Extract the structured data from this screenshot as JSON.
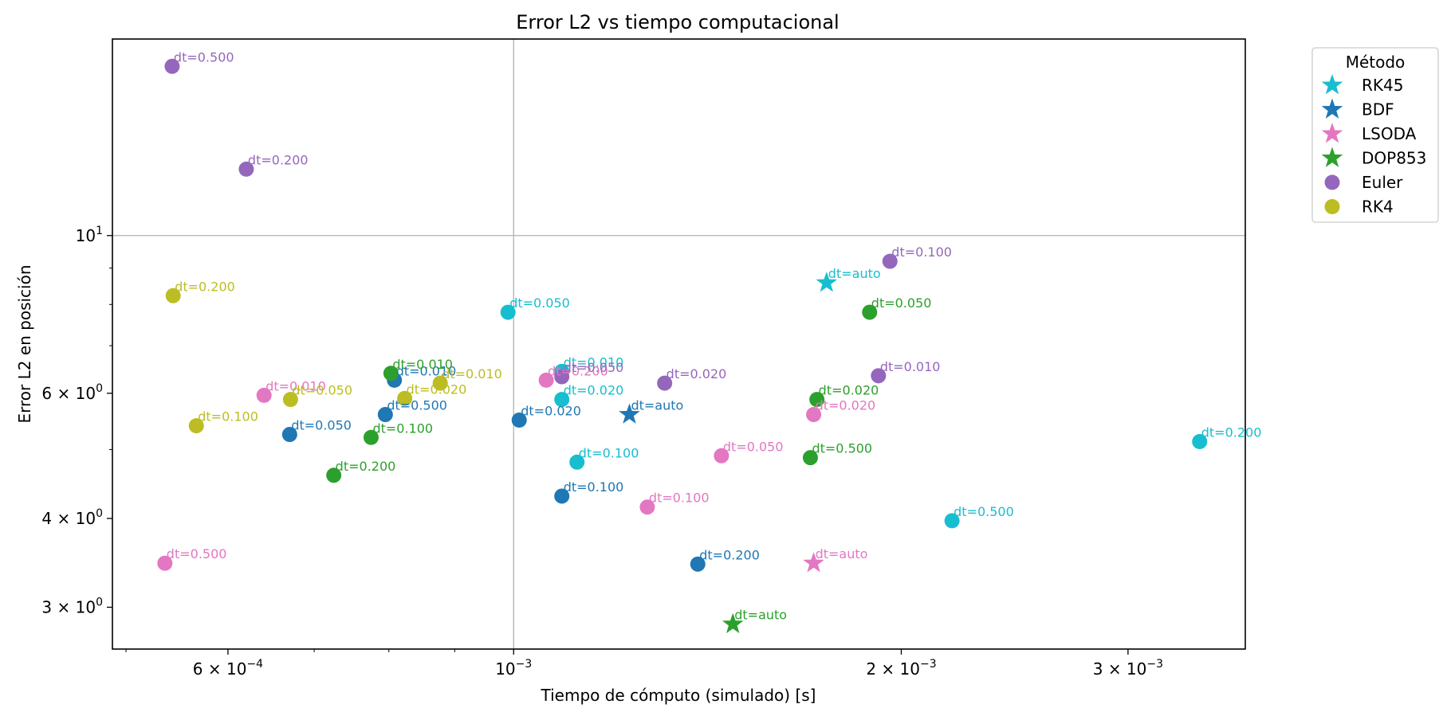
{
  "chart_data": {
    "type": "scatter",
    "title": "Error L2 vs tiempo computacional",
    "xlabel": "Tiempo de cómputo (simulado) [s]",
    "ylabel": "Error L2 en posición",
    "xscale": "log",
    "yscale": "log",
    "xlim": [
      0.000488,
      0.0037
    ],
    "ylim": [
      2.62,
      18.9
    ],
    "grid": "major gridlines only (x at 1e-3, y at 1e1)",
    "xticks": [
      {
        "value": 0.0006,
        "label": "6 × 10",
        "exp": "−4"
      },
      {
        "value": 0.001,
        "label": "10",
        "exp": "−3"
      },
      {
        "value": 0.002,
        "label": "2 × 10",
        "exp": "−3"
      },
      {
        "value": 0.003,
        "label": "3 × 10",
        "exp": "−3"
      }
    ],
    "yticks": [
      {
        "value": 3,
        "label": "3 × 10",
        "exp": "0"
      },
      {
        "value": 4,
        "label": "4 × 10",
        "exp": "0"
      },
      {
        "value": 6,
        "label": "6 × 10",
        "exp": "0"
      },
      {
        "value": 10,
        "label": "10",
        "exp": "1"
      }
    ],
    "legend": {
      "title": "Método",
      "placement": "outside right, top"
    },
    "series": [
      {
        "name": "RK45",
        "color": "#17becf",
        "points": [
          {
            "x": 0.00175,
            "y": 8.58,
            "label": "dt=auto",
            "marker": "star"
          },
          {
            "x": 0.00099,
            "y": 7.8,
            "label": "dt=0.050",
            "marker": "circle"
          },
          {
            "x": 0.00109,
            "y": 6.44,
            "label": "dt=0.010",
            "marker": "circle"
          },
          {
            "x": 0.00109,
            "y": 5.88,
            "label": "dt=0.020",
            "marker": "circle"
          },
          {
            "x": 0.00112,
            "y": 4.8,
            "label": "dt=0.100",
            "marker": "circle"
          },
          {
            "x": 0.00341,
            "y": 5.13,
            "label": "dt=0.200",
            "marker": "circle"
          },
          {
            "x": 0.00219,
            "y": 3.97,
            "label": "dt=0.500",
            "marker": "circle"
          }
        ]
      },
      {
        "name": "BDF",
        "color": "#1f77b4",
        "points": [
          {
            "x": 0.00123,
            "y": 5.6,
            "label": "dt=auto",
            "marker": "star"
          },
          {
            "x": 0.000808,
            "y": 6.26,
            "label": "dt=0.010",
            "marker": "circle"
          },
          {
            "x": 0.000795,
            "y": 5.6,
            "label": "dt=0.500",
            "marker": "circle"
          },
          {
            "x": 0.00067,
            "y": 5.25,
            "label": "dt=0.050",
            "marker": "circle"
          },
          {
            "x": 0.00101,
            "y": 5.5,
            "label": "dt=0.020",
            "marker": "circle"
          },
          {
            "x": 0.00109,
            "y": 4.3,
            "label": "dt=0.100",
            "marker": "circle"
          },
          {
            "x": 0.00139,
            "y": 3.45,
            "label": "dt=0.200",
            "marker": "circle"
          }
        ]
      },
      {
        "name": "LSODA",
        "color": "#e377c2",
        "points": [
          {
            "x": 0.00171,
            "y": 3.46,
            "label": "dt=auto",
            "marker": "star"
          },
          {
            "x": 0.00064,
            "y": 5.96,
            "label": "dt=0.010",
            "marker": "circle"
          },
          {
            "x": 0.00106,
            "y": 6.26,
            "label": "dt=0.200",
            "marker": "circle"
          },
          {
            "x": 0.00171,
            "y": 5.6,
            "label": "dt=0.020",
            "marker": "circle"
          },
          {
            "x": 0.00145,
            "y": 4.9,
            "label": "dt=0.050",
            "marker": "circle"
          },
          {
            "x": 0.00127,
            "y": 4.15,
            "label": "dt=0.100",
            "marker": "circle"
          },
          {
            "x": 0.000536,
            "y": 3.46,
            "label": "dt=0.500",
            "marker": "circle"
          }
        ]
      },
      {
        "name": "DOP853",
        "color": "#2ca02c",
        "points": [
          {
            "x": 0.00148,
            "y": 2.84,
            "label": "dt=auto",
            "marker": "star"
          },
          {
            "x": 0.000803,
            "y": 6.4,
            "label": "dt=0.010",
            "marker": "circle"
          },
          {
            "x": 0.000775,
            "y": 5.2,
            "label": "dt=0.100",
            "marker": "circle"
          },
          {
            "x": 0.000725,
            "y": 4.6,
            "label": "dt=0.200",
            "marker": "circle"
          },
          {
            "x": 0.00189,
            "y": 7.8,
            "label": "dt=0.050",
            "marker": "circle"
          },
          {
            "x": 0.00172,
            "y": 5.88,
            "label": "dt=0.020",
            "marker": "circle"
          },
          {
            "x": 0.0017,
            "y": 4.87,
            "label": "dt=0.500",
            "marker": "circle"
          }
        ]
      },
      {
        "name": "Euler",
        "color": "#9467bd",
        "points": [
          {
            "x": 0.000543,
            "y": 17.3,
            "label": "dt=0.500",
            "marker": "circle"
          },
          {
            "x": 0.00062,
            "y": 12.4,
            "label": "dt=0.200",
            "marker": "circle"
          },
          {
            "x": 0.00196,
            "y": 9.2,
            "label": "dt=0.100",
            "marker": "circle"
          },
          {
            "x": 0.00192,
            "y": 6.35,
            "label": "dt=0.010",
            "marker": "circle"
          },
          {
            "x": 0.00131,
            "y": 6.2,
            "label": "dt=0.020",
            "marker": "circle"
          },
          {
            "x": 0.00109,
            "y": 6.33,
            "label": "dt=0.050",
            "marker": "circle"
          }
        ]
      },
      {
        "name": "RK4",
        "color": "#bcbd22",
        "points": [
          {
            "x": 0.000544,
            "y": 8.23,
            "label": "dt=0.200",
            "marker": "circle"
          },
          {
            "x": 0.000567,
            "y": 5.4,
            "label": "dt=0.100",
            "marker": "circle"
          },
          {
            "x": 0.000671,
            "y": 5.88,
            "label": "dt=0.050",
            "marker": "circle"
          },
          {
            "x": 0.000823,
            "y": 5.9,
            "label": "dt=0.020",
            "marker": "circle"
          },
          {
            "x": 0.000877,
            "y": 6.2,
            "label": "dt=0.010",
            "marker": "circle"
          }
        ]
      }
    ]
  }
}
